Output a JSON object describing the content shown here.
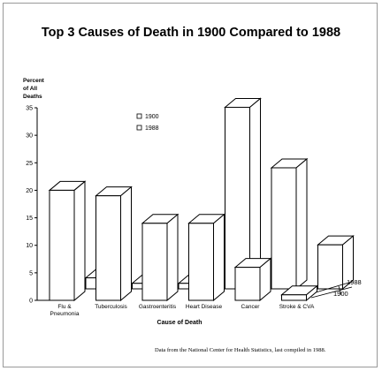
{
  "chart_data": {
    "type": "bar",
    "title": "Top 3 Causes of Death in 1900 Compared to 1988",
    "ylabel_lines": [
      "Percent",
      "of All",
      "Deaths"
    ],
    "xlabel": "Cause of Death",
    "ylim": [
      0,
      35
    ],
    "yticks": [
      0,
      5,
      10,
      15,
      20,
      25,
      30,
      35
    ],
    "categories": [
      {
        "lines": [
          "Flu &",
          "Pneumonia"
        ]
      },
      {
        "lines": [
          "Tuberculosis"
        ]
      },
      {
        "lines": [
          "Gastroenteritis"
        ]
      },
      {
        "lines": [
          "Heart Disease"
        ]
      },
      {
        "lines": [
          "Cancer"
        ]
      },
      {
        "lines": [
          "Stroke & CVA"
        ]
      }
    ],
    "series": [
      {
        "name": "1900",
        "values": [
          20,
          19,
          14,
          14,
          6,
          1
        ]
      },
      {
        "name": "1988",
        "values": [
          2,
          1,
          1,
          33,
          22,
          8
        ]
      }
    ],
    "legend": {
      "position": "top-center",
      "entries": [
        "1900",
        "1988"
      ]
    },
    "depth_labels": [
      "1988",
      "1900"
    ],
    "grid": false
  },
  "source_note": "Data from the National Center for Health Statistics, last compiled in 1988."
}
